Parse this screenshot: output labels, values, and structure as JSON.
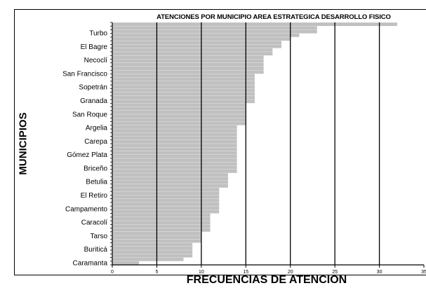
{
  "chart_data": {
    "type": "bar",
    "orientation": "horizontal",
    "title": "ATENCIONES POR MUNICIPIO AREA ESTRATEGICA DESARROLLO FISICO",
    "xlabel": "FRECUENCIAS DE ATENCION",
    "ylabel": "MUNICIPIOS",
    "xlim": [
      0,
      35
    ],
    "xticks": [
      0,
      5,
      10,
      15,
      20,
      25,
      30,
      35
    ],
    "grid": "vertical lines at 5, 10, 15, 20, 25, 30",
    "bar_color": "#c0c0c0",
    "grid_color": "#000000",
    "category_labels_shown": [
      "Turbo",
      "El Bagre",
      "Necoclí",
      "San Francisco",
      "Sopetrán",
      "Granada",
      "San Roque",
      "Argelia",
      "Carepa",
      "Gómez Plata",
      "Briceño",
      "Betulia",
      "El Retiro",
      "Campamento",
      "Caracolí",
      "Tarso",
      "Buriticá",
      "Caramanta"
    ],
    "values": [
      32,
      23,
      23,
      21,
      20,
      19,
      19,
      18,
      18,
      17,
      17,
      17,
      17,
      17,
      16,
      16,
      16,
      16,
      16,
      16,
      16,
      16,
      15,
      15,
      15,
      15,
      15,
      15,
      14,
      14,
      14,
      14,
      14,
      14,
      14,
      14,
      14,
      14,
      14,
      14,
      14,
      13,
      13,
      13,
      13,
      12,
      12,
      12,
      12,
      12,
      12,
      12,
      11,
      11,
      11,
      11,
      11,
      10,
      10,
      10,
      9,
      9,
      9,
      9,
      8,
      3
    ]
  }
}
